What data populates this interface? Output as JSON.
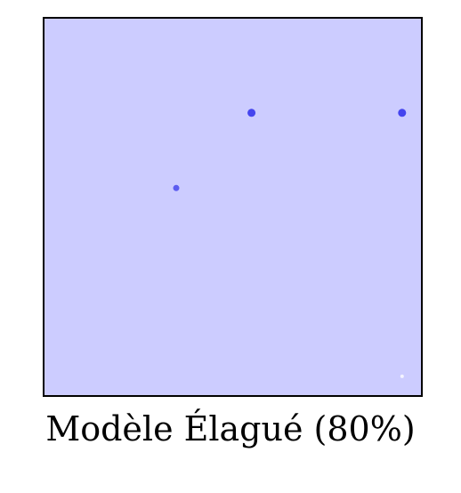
{
  "colors": {
    "background": "#ccccff",
    "border": "#000000",
    "point_dark": "#4444ee",
    "point_mid": "#5c5cf0",
    "point_light": "#f4f4ff"
  },
  "chart_data": {
    "type": "scatter",
    "title": "Modèle Élagué (80%)",
    "xlabel": "",
    "ylabel": "",
    "xlim": [
      0,
      1
    ],
    "ylim": [
      0,
      1
    ],
    "grid": false,
    "axes_ticks": false,
    "points": [
      {
        "x": 0.55,
        "y": 0.75,
        "size": "large",
        "color": "#4444ee"
      },
      {
        "x": 0.95,
        "y": 0.75,
        "size": "large",
        "color": "#4444ee"
      },
      {
        "x": 0.35,
        "y": 0.55,
        "size": "medium",
        "color": "#5c5cf0"
      },
      {
        "x": 0.95,
        "y": 0.05,
        "size": "small",
        "color": "#f4f4ff"
      }
    ]
  }
}
